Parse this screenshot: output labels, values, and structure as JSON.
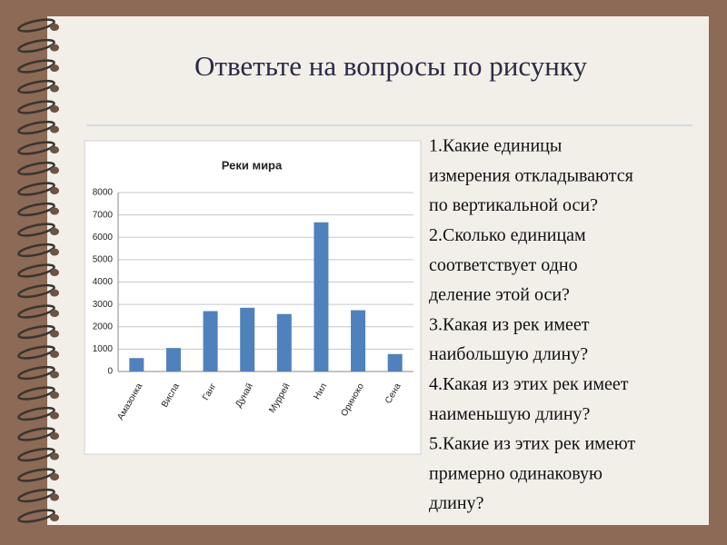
{
  "title": "Ответьте на вопросы по рисунку",
  "question_lines": [
    "1.Какие единицы",
    "измерения откладываются",
    "по вертикальной оси?",
    "2.Сколько единицам",
    "соответствует одно",
    "деление этой оси?",
    "3.Какая из рек имеет",
    "наибольшую длину?",
    "4.Какая из этих рек имеет",
    "наименьшую длину?",
    "5.Какие из этих рек имеют",
    "примерно одинаковую",
    "длину?"
  ],
  "chart_data": {
    "type": "bar",
    "title": "Реки мира",
    "categories": [
      "Амазонка",
      "Висла",
      "Ганг",
      "Дунай",
      "Муррей",
      "Нил",
      "Ориноко",
      "Сена"
    ],
    "values": [
      600,
      1050,
      2700,
      2850,
      2570,
      6670,
      2740,
      780
    ],
    "color": "#4f81bd",
    "ylim": [
      0,
      8000
    ],
    "yticks": [
      0,
      1000,
      2000,
      3000,
      4000,
      5000,
      6000,
      7000,
      8000
    ],
    "grid": true
  }
}
